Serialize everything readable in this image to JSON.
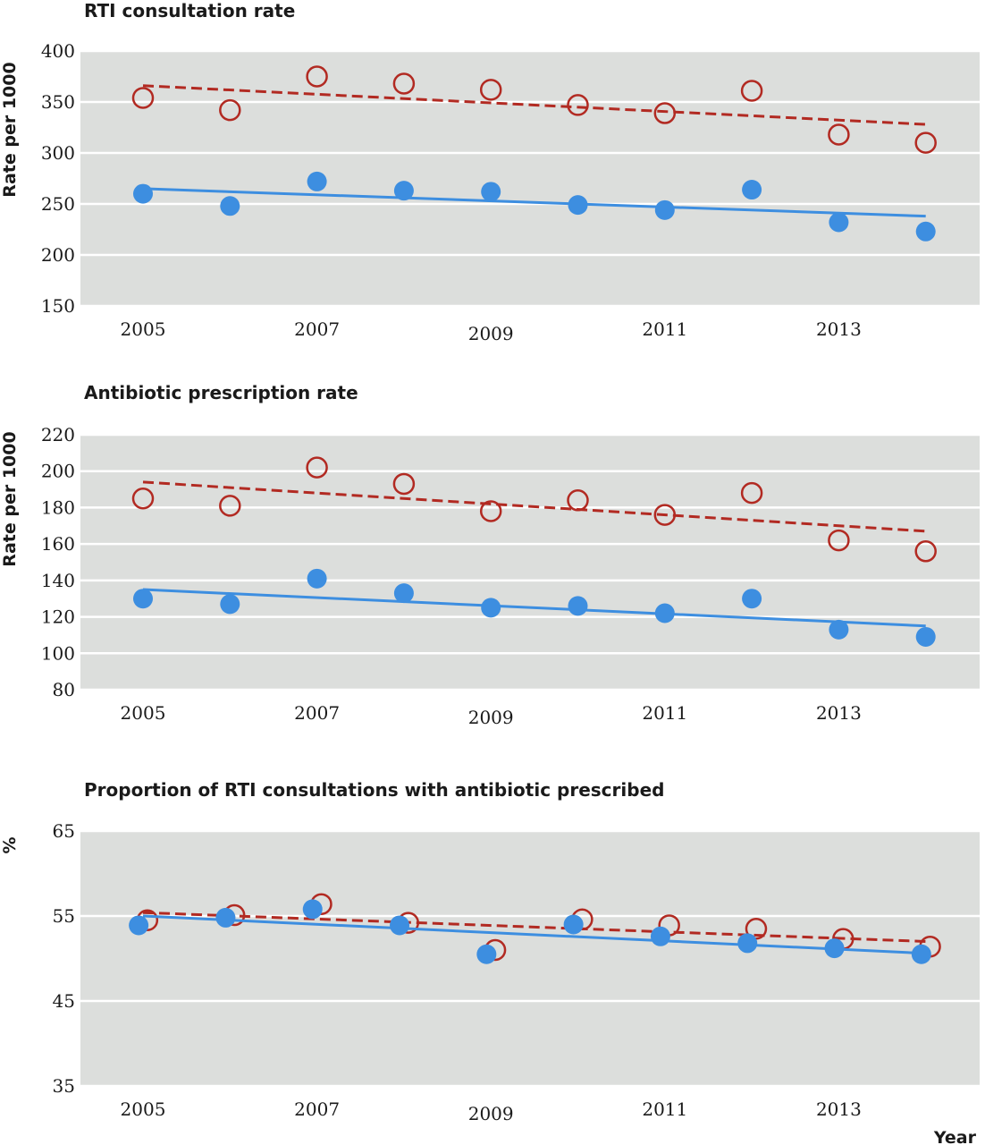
{
  "colors": {
    "panel_bg": "#dcdedc",
    "grid": "#ffffff",
    "open_series": "#b22a22",
    "filled_series": "#3d8ee0"
  },
  "x_axis": {
    "label": "Year",
    "tick_labels": [
      "2005",
      "2007",
      "2009",
      "2011",
      "2013"
    ]
  },
  "chart_data": [
    {
      "type": "scatter",
      "title": "RTI consultation rate",
      "ylabel": "Rate per 1000",
      "ylim": [
        150,
        400
      ],
      "yticks": [
        150,
        200,
        250,
        300,
        350,
        400
      ],
      "x": [
        2005,
        2006,
        2007,
        2008,
        2009,
        2010,
        2011,
        2012,
        2013,
        2014
      ],
      "series": [
        {
          "marker": "open-circle",
          "line": "dashed",
          "color": "#b22a22",
          "values": [
            354,
            342,
            375,
            368,
            362,
            347,
            339,
            361,
            318,
            310
          ],
          "trend": [
            [
              2005,
              366
            ],
            [
              2014,
              328
            ]
          ]
        },
        {
          "marker": "filled-circle",
          "line": "solid",
          "color": "#3d8ee0",
          "values": [
            260,
            248,
            272,
            263,
            262,
            249,
            244,
            264,
            232,
            223
          ],
          "trend": [
            [
              2005,
              265
            ],
            [
              2014,
              238
            ]
          ]
        }
      ],
      "grid": true,
      "legend": "none"
    },
    {
      "type": "scatter",
      "title": "Antibiotic prescription rate",
      "ylabel": "Rate per 1000",
      "ylim": [
        80,
        220
      ],
      "yticks": [
        80,
        100,
        120,
        140,
        160,
        180,
        200,
        220
      ],
      "x": [
        2005,
        2006,
        2007,
        2008,
        2009,
        2010,
        2011,
        2012,
        2013,
        2014
      ],
      "series": [
        {
          "marker": "open-circle",
          "line": "dashed",
          "color": "#b22a22",
          "values": [
            185,
            181,
            202,
            193,
            178,
            184,
            176,
            188,
            162,
            156
          ],
          "trend": [
            [
              2005,
              194
            ],
            [
              2014,
              167
            ]
          ]
        },
        {
          "marker": "filled-circle",
          "line": "solid",
          "color": "#3d8ee0",
          "values": [
            130,
            127,
            141,
            133,
            125,
            126,
            122,
            130,
            113,
            109
          ],
          "trend": [
            [
              2005,
              135
            ],
            [
              2014,
              115
            ]
          ]
        }
      ],
      "grid": true,
      "legend": "none"
    },
    {
      "type": "scatter",
      "title": "Proportion of RTI consultations with antibiotic prescribed",
      "ylabel": "%",
      "ylim": [
        35,
        65
      ],
      "yticks": [
        35,
        45,
        55,
        65
      ],
      "x": [
        2005,
        2006,
        2007,
        2008,
        2009,
        2010,
        2011,
        2012,
        2013,
        2014
      ],
      "series": [
        {
          "marker": "open-circle",
          "line": "dashed",
          "color": "#b22a22",
          "x": [
            2005.05,
            2006.05,
            2007.05,
            2008.05,
            2009.05,
            2010.05,
            2011.05,
            2012.05,
            2013.05,
            2014.05
          ],
          "values": [
            54.5,
            55.1,
            56.4,
            54.2,
            51.0,
            54.6,
            53.9,
            53.5,
            52.3,
            51.4
          ],
          "trend": [
            [
              2005,
              55.4
            ],
            [
              2014,
              52.0
            ]
          ]
        },
        {
          "marker": "filled-circle",
          "line": "solid",
          "color": "#3d8ee0",
          "x": [
            2004.95,
            2005.95,
            2006.95,
            2007.95,
            2008.95,
            2009.95,
            2010.95,
            2011.95,
            2012.95,
            2013.95
          ],
          "values": [
            53.9,
            54.8,
            55.8,
            53.9,
            50.5,
            54.0,
            52.6,
            51.8,
            51.2,
            50.5
          ],
          "trend": [
            [
              2005,
              55.0
            ],
            [
              2014,
              50.6
            ]
          ]
        }
      ],
      "grid": true,
      "legend": "none"
    }
  ]
}
